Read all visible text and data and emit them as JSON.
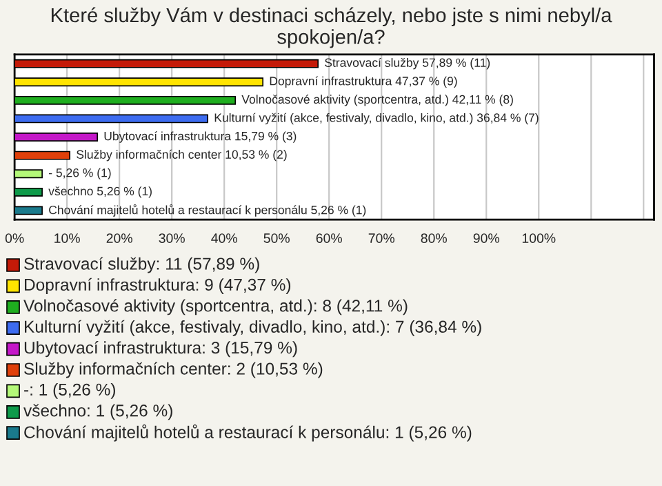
{
  "chart_data": {
    "type": "bar",
    "orientation": "horizontal",
    "title": "Které služby Vám v destinaci scházely, nebo jste s nimi nebyl/a spokojen/a?",
    "categories": [
      "Stravovací služby",
      "Dopravní infrastruktura",
      "Volnočasové aktivity (sportcentra, atd.)",
      "Kulturní vyžití (akce, festivaly, divadlo, kino, atd.)",
      "Ubytovací infrastruktura",
      "Služby informačních center",
      "-",
      "všechno",
      "Chování majitelů hotelů a restaurací k personálu"
    ],
    "values": [
      57.89,
      47.37,
      42.11,
      36.84,
      15.79,
      10.53,
      5.26,
      5.26,
      5.26
    ],
    "value_labels": [
      "57,89 % (11)",
      "47,37 % (9)",
      "42,11 % (8)",
      "36,84 % (7)",
      "15,79 % (3)",
      "10,53 % (2)",
      "5,26 % (1)",
      "5,26 % (1)",
      "5,26 % (1)"
    ],
    "colors": [
      "#c41a08",
      "#ffe400",
      "#1fae1f",
      "#3d6cf0",
      "#c418c8",
      "#e0400a",
      "#b4f878",
      "#0e9a4a",
      "#1a7a8c"
    ],
    "xlim": [
      0,
      122
    ],
    "xticks": [
      {
        "value": 0,
        "label": "0%"
      },
      {
        "value": 10,
        "label": "10%"
      },
      {
        "value": 20,
        "label": "20%"
      },
      {
        "value": 30,
        "label": "30%"
      },
      {
        "value": 40,
        "label": "40%"
      },
      {
        "value": 50,
        "label": "50%"
      },
      {
        "value": 60,
        "label": "60%"
      },
      {
        "value": 70,
        "label": "70%"
      },
      {
        "value": 80,
        "label": "80%"
      },
      {
        "value": 90,
        "label": "90%"
      },
      {
        "value": 100,
        "label": "100%"
      },
      {
        "value": 110,
        "label": null
      },
      {
        "value": 120,
        "label": null
      }
    ],
    "grid": "x",
    "annotations": [
      "Stravovací služby: 11 (57,89 %)",
      "Dopravní infrastruktura: 9 (47,37 %)",
      "Volnočasové aktivity (sportcentra, atd.): 8 (42,11 %)",
      "Kulturní vyžití (akce, festivaly, divadlo, kino, atd.): 7 (36,84 %)",
      "Ubytovací infrastruktura: 3 (15,79 %)",
      "Služby informačních center: 2 (10,53 %)",
      "-: 1 (5,26 %)",
      "všechno: 1 (5,26 %)",
      "Chování majitelů hotelů a restaurací k personálu: 1 (5,26 %)"
    ]
  }
}
